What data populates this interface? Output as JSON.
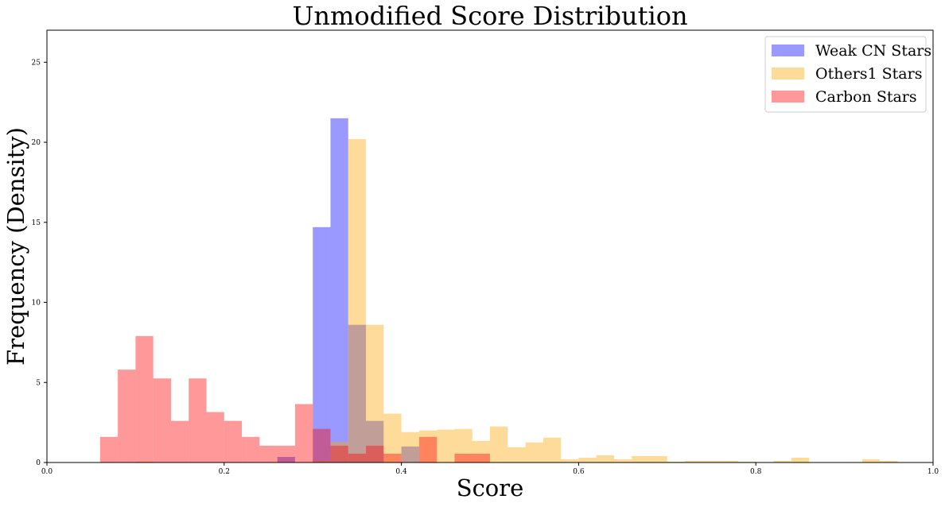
{
  "chart_data": {
    "type": "bar",
    "title": "Unmodified Score Distribution",
    "xlabel": "Score",
    "ylabel": "Frequency (Density)",
    "xlim": [
      0.0,
      1.0
    ],
    "ylim": [
      0,
      27
    ],
    "xticks": [
      0.0,
      0.2,
      0.4,
      0.6,
      0.8,
      1.0
    ],
    "xtick_labels": [
      "0.0",
      "0.2",
      "0.4",
      "0.6",
      "0.8",
      "1.0"
    ],
    "yticks": [
      0,
      5,
      10,
      15,
      20,
      25
    ],
    "ytick_labels": [
      "0",
      "5",
      "10",
      "15",
      "20",
      "25"
    ],
    "grid": false,
    "legend_position": "top-right",
    "series": [
      {
        "name": "Weak CN Stars",
        "color": "#0000ff",
        "alpha": 0.4,
        "bins": [
          {
            "x0": 0.26,
            "x1": 0.28,
            "y": 0.35
          },
          {
            "x0": 0.3,
            "x1": 0.32,
            "y": 14.7
          },
          {
            "x0": 0.32,
            "x1": 0.34,
            "y": 21.5
          },
          {
            "x0": 0.34,
            "x1": 0.36,
            "y": 8.6
          },
          {
            "x0": 0.36,
            "x1": 0.38,
            "y": 2.6
          },
          {
            "x0": 0.4,
            "x1": 0.42,
            "y": 1.0
          }
        ]
      },
      {
        "name": "Others1 Stars",
        "color": "#ffa500",
        "alpha": 0.4,
        "bins": [
          {
            "x0": 0.1,
            "x1": 0.12,
            "y": 0.05
          },
          {
            "x0": 0.3,
            "x1": 0.32,
            "y": 0.1
          },
          {
            "x0": 0.32,
            "x1": 0.34,
            "y": 1.3
          },
          {
            "x0": 0.34,
            "x1": 0.36,
            "y": 20.2
          },
          {
            "x0": 0.36,
            "x1": 0.38,
            "y": 8.6
          },
          {
            "x0": 0.38,
            "x1": 0.4,
            "y": 3.05
          },
          {
            "x0": 0.4,
            "x1": 0.42,
            "y": 1.9
          },
          {
            "x0": 0.42,
            "x1": 0.44,
            "y": 2.0
          },
          {
            "x0": 0.44,
            "x1": 0.46,
            "y": 2.05
          },
          {
            "x0": 0.46,
            "x1": 0.48,
            "y": 2.1
          },
          {
            "x0": 0.48,
            "x1": 0.5,
            "y": 1.35
          },
          {
            "x0": 0.5,
            "x1": 0.52,
            "y": 2.25
          },
          {
            "x0": 0.52,
            "x1": 0.54,
            "y": 0.95
          },
          {
            "x0": 0.54,
            "x1": 0.56,
            "y": 1.25
          },
          {
            "x0": 0.56,
            "x1": 0.58,
            "y": 1.55
          },
          {
            "x0": 0.58,
            "x1": 0.6,
            "y": 0.2
          },
          {
            "x0": 0.6,
            "x1": 0.62,
            "y": 0.3
          },
          {
            "x0": 0.62,
            "x1": 0.64,
            "y": 0.45
          },
          {
            "x0": 0.64,
            "x1": 0.66,
            "y": 0.2
          },
          {
            "x0": 0.66,
            "x1": 0.68,
            "y": 0.4
          },
          {
            "x0": 0.68,
            "x1": 0.7,
            "y": 0.4
          },
          {
            "x0": 0.7,
            "x1": 0.72,
            "y": 0.05
          },
          {
            "x0": 0.72,
            "x1": 0.74,
            "y": 0.1
          },
          {
            "x0": 0.74,
            "x1": 0.76,
            "y": 0.1
          },
          {
            "x0": 0.76,
            "x1": 0.78,
            "y": 0.1
          },
          {
            "x0": 0.78,
            "x1": 0.8,
            "y": 0.05
          },
          {
            "x0": 0.82,
            "x1": 0.84,
            "y": 0.1
          },
          {
            "x0": 0.84,
            "x1": 0.86,
            "y": 0.3
          },
          {
            "x0": 0.92,
            "x1": 0.94,
            "y": 0.2
          },
          {
            "x0": 0.94,
            "x1": 0.96,
            "y": 0.1
          }
        ]
      },
      {
        "name": "Carbon Stars",
        "color": "#ff0000",
        "alpha": 0.4,
        "bins": [
          {
            "x0": 0.06,
            "x1": 0.08,
            "y": 1.6
          },
          {
            "x0": 0.08,
            "x1": 0.1,
            "y": 5.8
          },
          {
            "x0": 0.1,
            "x1": 0.12,
            "y": 7.9
          },
          {
            "x0": 0.12,
            "x1": 0.14,
            "y": 5.25
          },
          {
            "x0": 0.14,
            "x1": 0.16,
            "y": 2.6
          },
          {
            "x0": 0.16,
            "x1": 0.18,
            "y": 5.25
          },
          {
            "x0": 0.18,
            "x1": 0.2,
            "y": 3.15
          },
          {
            "x0": 0.2,
            "x1": 0.22,
            "y": 2.6
          },
          {
            "x0": 0.22,
            "x1": 0.24,
            "y": 1.6
          },
          {
            "x0": 0.24,
            "x1": 0.26,
            "y": 1.05
          },
          {
            "x0": 0.26,
            "x1": 0.28,
            "y": 1.05
          },
          {
            "x0": 0.28,
            "x1": 0.3,
            "y": 3.65
          },
          {
            "x0": 0.3,
            "x1": 0.32,
            "y": 2.1
          },
          {
            "x0": 0.32,
            "x1": 0.34,
            "y": 1.05
          },
          {
            "x0": 0.34,
            "x1": 0.36,
            "y": 0.55
          },
          {
            "x0": 0.36,
            "x1": 0.38,
            "y": 1.05
          },
          {
            "x0": 0.38,
            "x1": 0.4,
            "y": 0.55
          },
          {
            "x0": 0.42,
            "x1": 0.44,
            "y": 1.6
          },
          {
            "x0": 0.46,
            "x1": 0.48,
            "y": 0.55
          },
          {
            "x0": 0.48,
            "x1": 0.5,
            "y": 0.55
          }
        ]
      }
    ]
  }
}
